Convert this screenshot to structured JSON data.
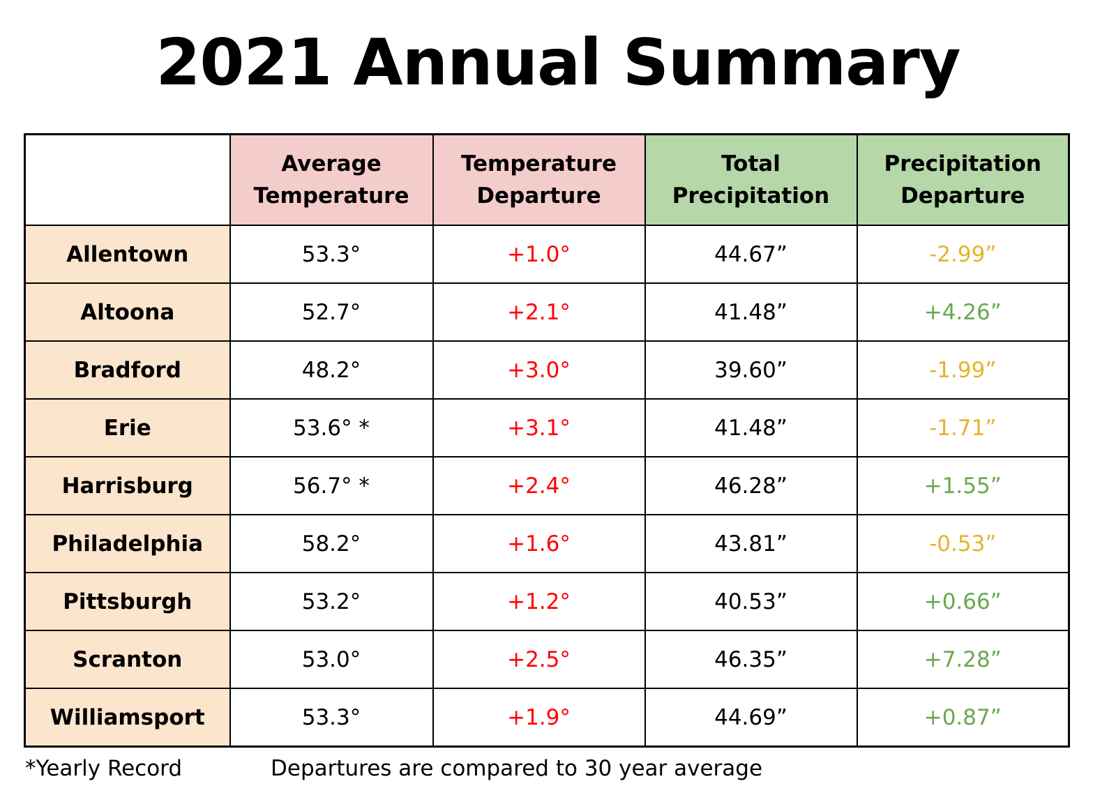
{
  "title": "2021 Annual Summary",
  "colors": {
    "temperature_header_bg": "#f4cccc",
    "precipitation_header_bg": "#b6d7a8",
    "city_column_bg": "#fce5cd",
    "temperature_departure_text": "#ff0000",
    "precipitation_departure_negative_text": "#e6b32a",
    "precipitation_departure_positive_text": "#6aa84f"
  },
  "table": {
    "headers": {
      "corner": "",
      "avg_temp": [
        "Average",
        "Temperature"
      ],
      "temp_departure": [
        "Temperature",
        "Departure"
      ],
      "total_precip": [
        "Total",
        "Precipitation"
      ],
      "precip_departure": [
        "Precipitation",
        "Departure"
      ]
    },
    "rows": [
      {
        "city": "Allentown",
        "avg_temp": "53.3°",
        "temp_departure": "+1.0°",
        "total_precip": "44.67”",
        "precip_departure": "-2.99”",
        "precip_trend": "negative"
      },
      {
        "city": "Altoona",
        "avg_temp": "52.7°",
        "temp_departure": "+2.1°",
        "total_precip": "41.48”",
        "precip_departure": "+4.26”",
        "precip_trend": "positive"
      },
      {
        "city": "Bradford",
        "avg_temp": "48.2°",
        "temp_departure": "+3.0°",
        "total_precip": "39.60”",
        "precip_departure": "-1.99”",
        "precip_trend": "negative"
      },
      {
        "city": "Erie",
        "avg_temp": "53.6° *",
        "temp_departure": "+3.1°",
        "total_precip": "41.48”",
        "precip_departure": "-1.71”",
        "precip_trend": "negative"
      },
      {
        "city": "Harrisburg",
        "avg_temp": "56.7° *",
        "temp_departure": "+2.4°",
        "total_precip": "46.28”",
        "precip_departure": "+1.55”",
        "precip_trend": "positive"
      },
      {
        "city": "Philadelphia",
        "avg_temp": "58.2°",
        "temp_departure": "+1.6°",
        "total_precip": "43.81”",
        "precip_departure": "-0.53”",
        "precip_trend": "negative"
      },
      {
        "city": "Pittsburgh",
        "avg_temp": "53.2°",
        "temp_departure": "+1.2°",
        "total_precip": "40.53”",
        "precip_departure": "+0.66”",
        "precip_trend": "positive"
      },
      {
        "city": "Scranton",
        "avg_temp": "53.0°",
        "temp_departure": "+2.5°",
        "total_precip": "46.35”",
        "precip_departure": "+7.28”",
        "precip_trend": "positive"
      },
      {
        "city": "Williamsport",
        "avg_temp": "53.3°",
        "temp_departure": "+1.9°",
        "total_precip": "44.69”",
        "precip_departure": "+0.87”",
        "precip_trend": "positive"
      }
    ]
  },
  "footer": {
    "record_note": "*Yearly Record",
    "departure_note": "Departures are compared to 30 year average"
  }
}
